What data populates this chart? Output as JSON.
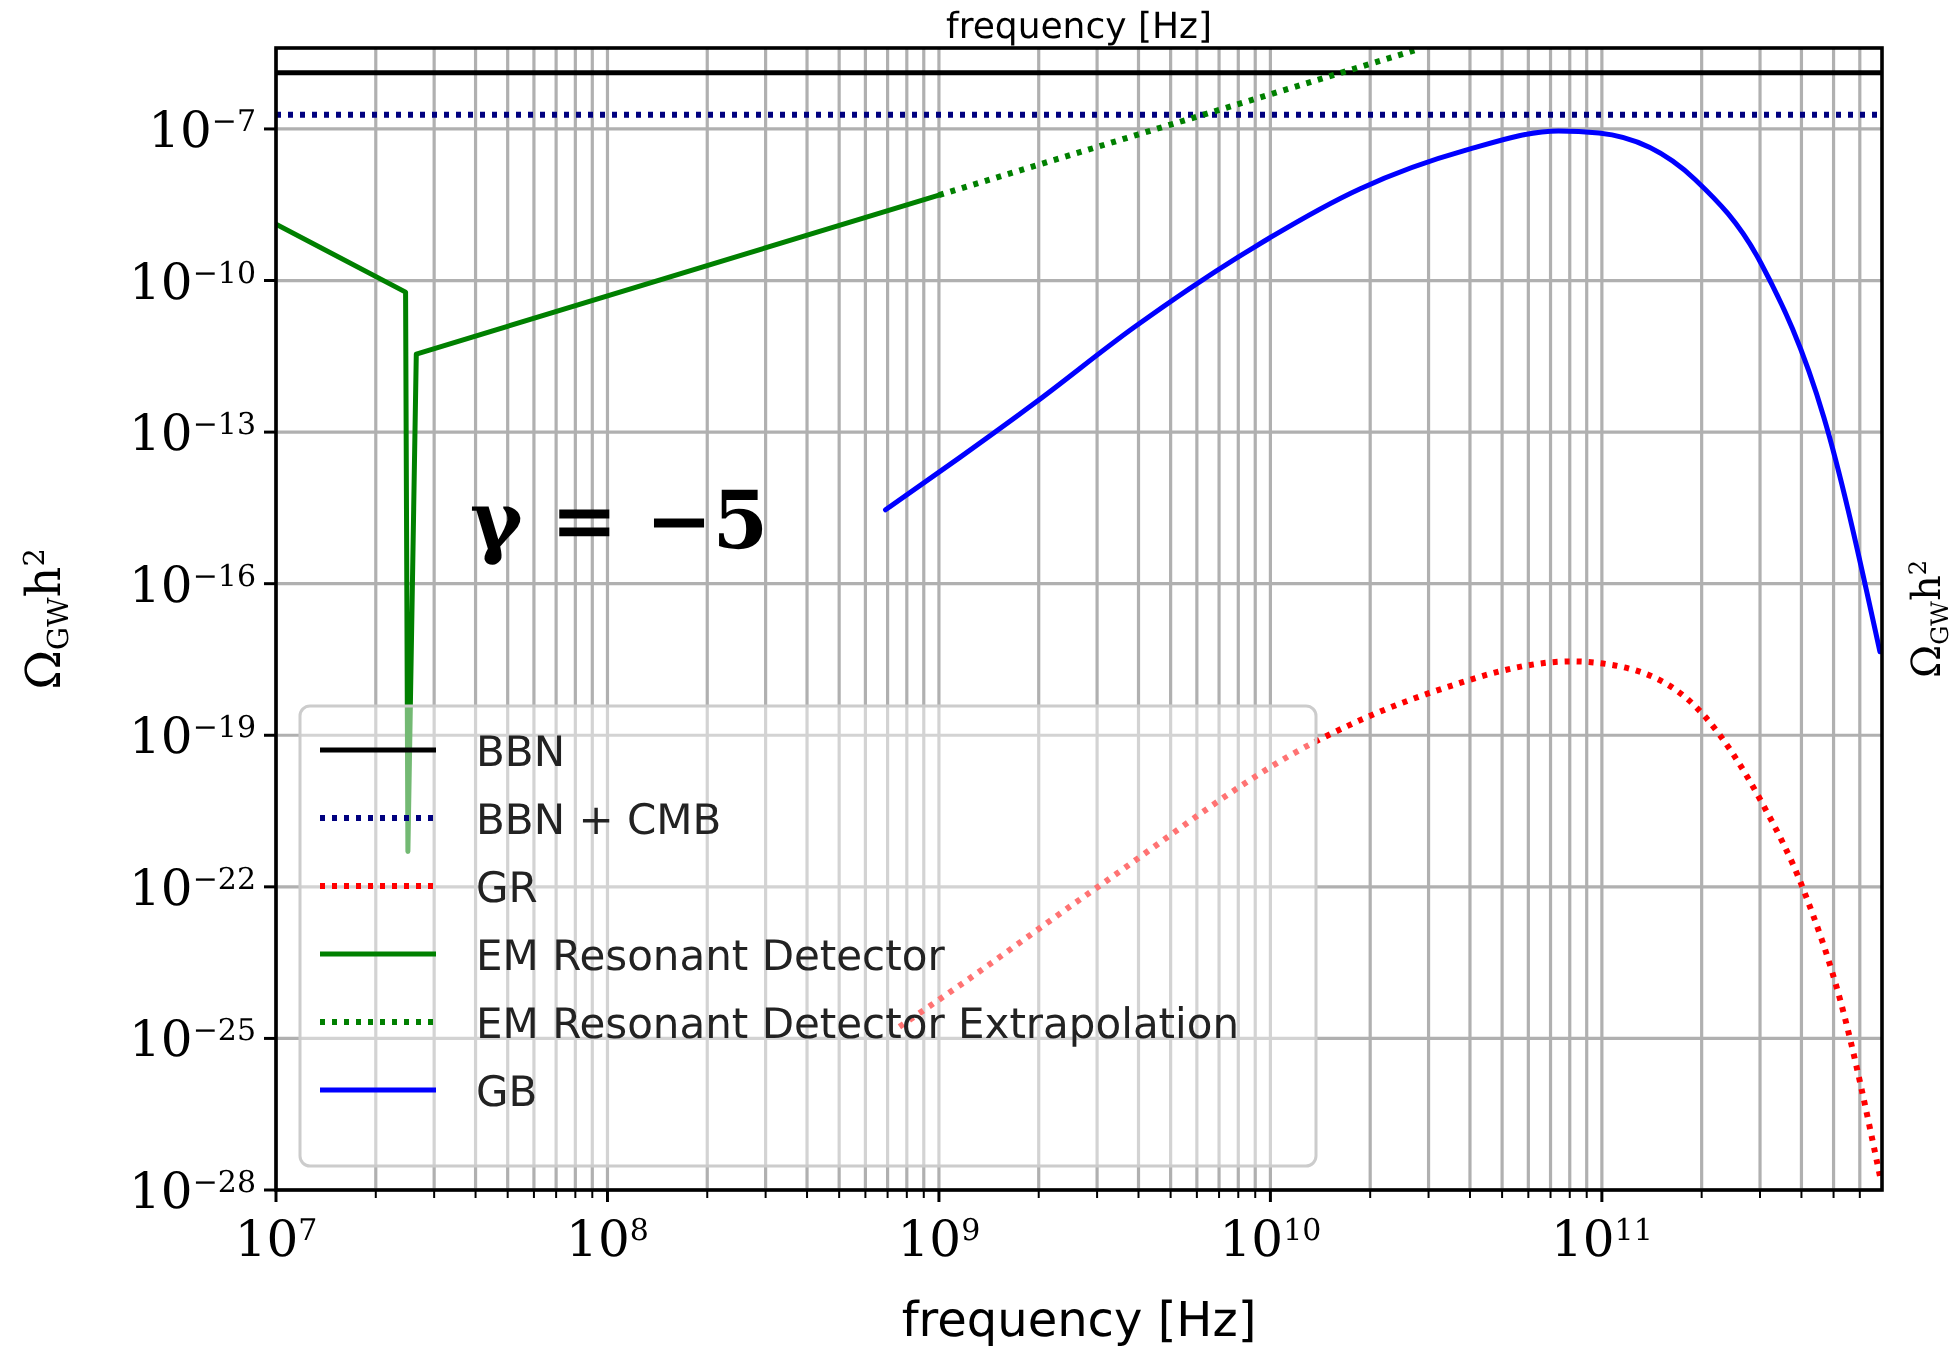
{
  "chart_data": {
    "type": "line",
    "xlabel": "frequency [Hz]",
    "x2label": "frequency [Hz]",
    "ylabel": "Ω$_{GW}$h$^{2}$",
    "y2label": "Ω$_{GW}$h$^{2}$",
    "log": "xy",
    "grid": true,
    "legend": "bottom left",
    "xlim": [
      10000000.0,
      700000000000.0
    ],
    "ylim": [
      1e-28,
      4e-06
    ],
    "xticks": [
      {
        "value": 10000000.0,
        "label": "10$^{7}$"
      },
      {
        "value": 100000000.0,
        "label": "10$^{8}$"
      },
      {
        "value": 1000000000.0,
        "label": "10$^{9}$"
      },
      {
        "value": 10000000000.0,
        "label": "10$^{10}$"
      },
      {
        "value": 100000000000.0,
        "label": "10$^{11}$"
      }
    ],
    "yticks": [
      {
        "value": 1e-28,
        "label": "10$^{−28}$"
      },
      {
        "value": 1e-25,
        "label": "10$^{−25}$"
      },
      {
        "value": 1e-22,
        "label": "10$^{−22}$"
      },
      {
        "value": 1e-19,
        "label": "10$^{−19}$"
      },
      {
        "value": 1e-16,
        "label": "10$^{−16}$"
      },
      {
        "value": 1e-13,
        "label": "10$^{−13}$"
      },
      {
        "value": 1e-10,
        "label": "10$^{−10}$"
      },
      {
        "value": 1e-07,
        "label": "10$^{−7}$"
      }
    ],
    "annotations": [
      "γ = −5"
    ],
    "series": [
      {
        "name": "BBN",
        "color": "#000000",
        "line_style": "solid",
        "x": [
          10000000.0,
          700000000000.0
        ],
        "values": [
          1.3e-06,
          1.3e-06
        ]
      },
      {
        "name": "BBN + CMB",
        "color": "#00007f",
        "line_style": "dotted",
        "x": [
          10000000.0,
          700000000000.0
        ],
        "values": [
          1.9e-07,
          1.9e-07
        ]
      },
      {
        "name": "GR",
        "color": "#ff0000",
        "line_style": "dotted",
        "x": [
          760000000.0,
          1150000000.0,
          2950000000.0,
          14100000000.0,
          29500000000.0,
          81000000000.0,
          117000000000.0,
          204000000000.0,
          302000000000.0,
          407000000000.0,
          525000000000.0,
          690000000000.0
        ],
        "values": [
          1.7e-25,
          1.1e-24,
          9e-23,
          8.3e-20,
          6.5e-19,
          2.9e-18,
          2.2e-18,
          2.4e-19,
          5e-21,
          8.3e-23,
          5.4e-25,
          1.9e-28
        ]
      },
      {
        "name": "EM Resonant Detector",
        "color": "#008000",
        "line_style": "solid",
        "x": [
          10000000.0,
          24600000.0,
          25000000.0,
          26500000.0,
          1000000000.0
        ],
        "values": [
          1.3e-09,
          5.9e-11,
          5e-22,
          3.5e-12,
          4.9e-09
        ]
      },
      {
        "name": "EM Resonant Detector Extrapolation",
        "color": "#008000",
        "line_style": "dotted",
        "x": [
          1000000000.0,
          28000000000.0
        ],
        "values": [
          4.9e-09,
          3.8e-06
        ]
      },
      {
        "name": "GB",
        "color": "#0000ff",
        "line_style": "solid",
        "x": [
          690000000.0,
          1160000000.0,
          1950000000.0,
          3890000000.0,
          8900000000.0,
          18600000000.0,
          38900000000.0,
          74000000000.0,
          98000000000.0,
          191000000000.0,
          302000000000.0,
          468000000000.0,
          690000000000.0
        ],
        "values": [
          2.9e-15,
          3.2e-14,
          3.8e-13,
          1.2e-11,
          4.5e-10,
          6.5e-09,
          3.8e-08,
          9.1e-08,
          8.3e-08,
          1e-08,
          2.2e-10,
          1.9e-13,
          4.5e-18
        ]
      }
    ]
  }
}
